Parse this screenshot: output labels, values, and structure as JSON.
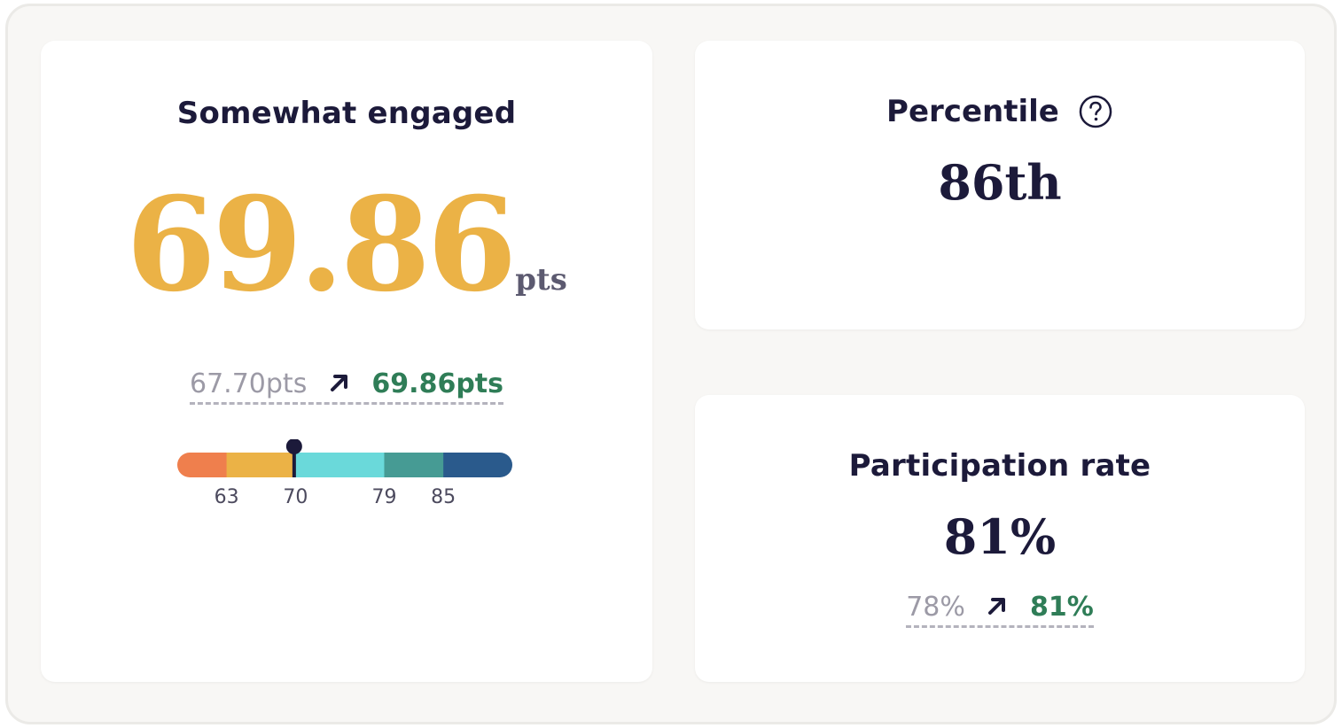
{
  "engagement": {
    "status_label": "Somewhat engaged",
    "score": "69.86",
    "unit": "pts",
    "change": {
      "from": "67.70pts",
      "to": "69.86pts",
      "direction": "up"
    },
    "gauge": {
      "min": 58,
      "max": 92,
      "marker_value": 69.86,
      "segments": [
        {
          "from": 58,
          "to": 63,
          "color": "#ef7f4d"
        },
        {
          "from": 63,
          "to": 70,
          "color": "#ebb246"
        },
        {
          "from": 70,
          "to": 79,
          "color": "#6ad9da"
        },
        {
          "from": 79,
          "to": 85,
          "color": "#469b94"
        },
        {
          "from": 85,
          "to": 92,
          "color": "#2a5a8c"
        }
      ],
      "ticks": [
        "63",
        "70",
        "79",
        "85"
      ]
    }
  },
  "percentile": {
    "title": "Percentile",
    "help_icon": "question-circle-icon",
    "value": "86th"
  },
  "participation": {
    "title": "Participation rate",
    "value": "81%",
    "change": {
      "from": "78%",
      "to": "81%",
      "direction": "up"
    }
  },
  "colors": {
    "score": "#ebb246",
    "positive": "#2f7d57",
    "muted": "#9c9aa6",
    "ink": "#1c1a3a"
  }
}
